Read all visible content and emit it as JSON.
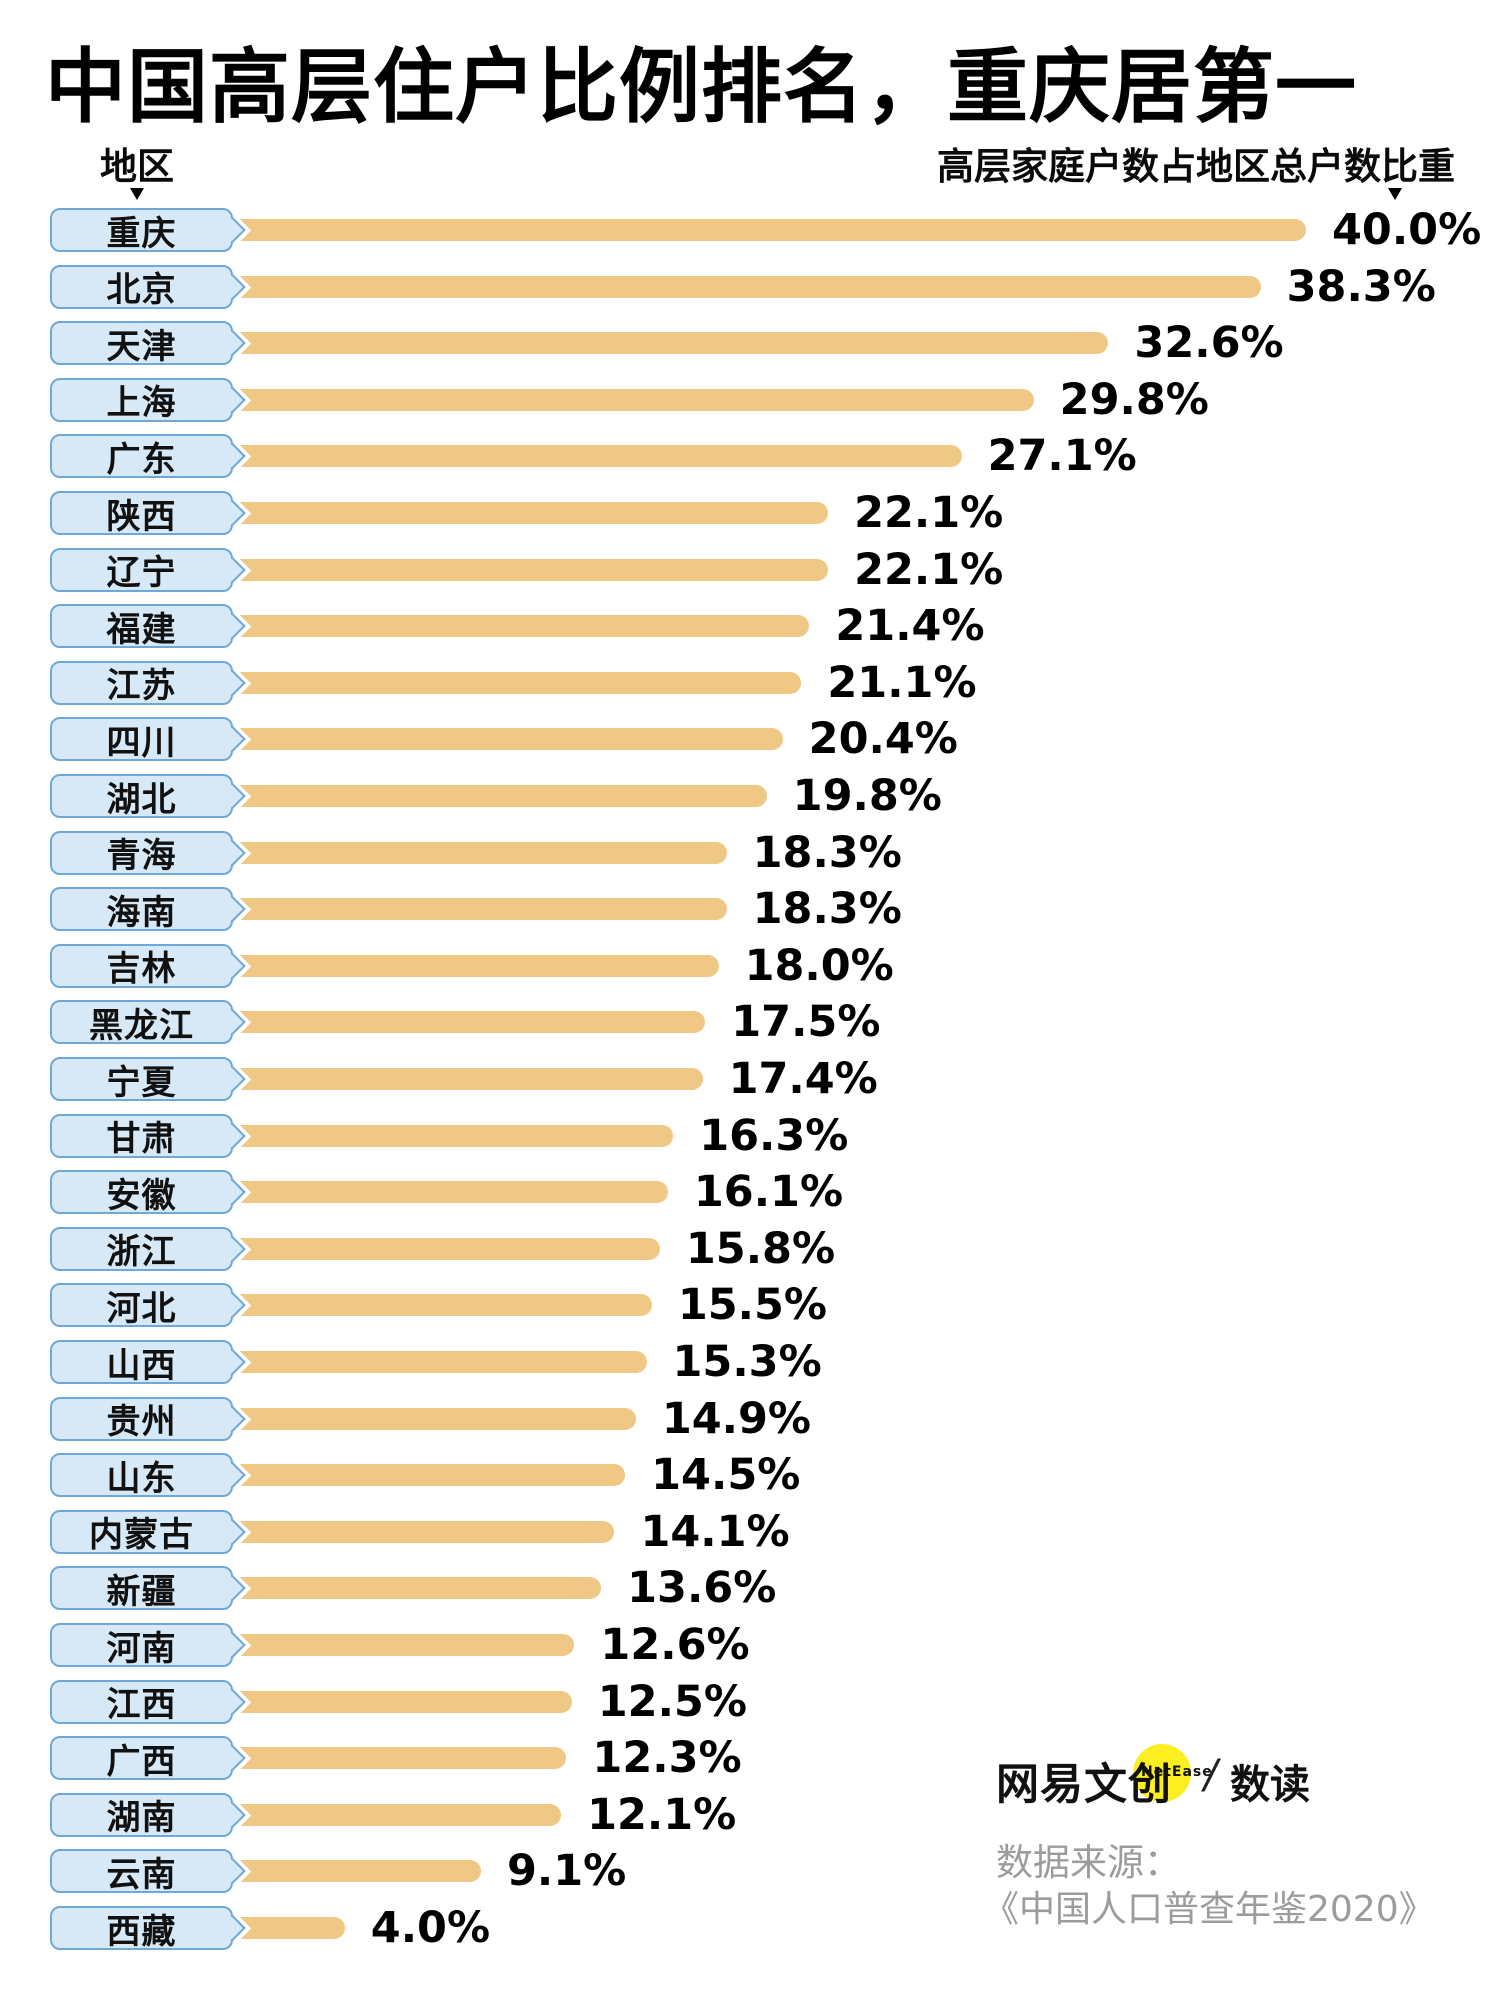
{
  "title": "中国高层住户比例排名，重庆居第一",
  "columns": {
    "left_header": "地区",
    "right_header": "高层家庭户数占地区总户数比重"
  },
  "chart_data": {
    "type": "bar",
    "orientation": "horizontal",
    "title": "中国高层住户比例排名，重庆居第一",
    "xlabel": "高层家庭户数占地区总户数比重",
    "ylabel": "地区",
    "unit": "%",
    "xlim": [
      0,
      40
    ],
    "grid": false,
    "categories": [
      "重庆",
      "北京",
      "天津",
      "上海",
      "广东",
      "陕西",
      "辽宁",
      "福建",
      "江苏",
      "四川",
      "湖北",
      "青海",
      "海南",
      "吉林",
      "黑龙江",
      "宁夏",
      "甘肃",
      "安徽",
      "浙江",
      "河北",
      "山西",
      "贵州",
      "山东",
      "内蒙古",
      "新疆",
      "河南",
      "江西",
      "广西",
      "湖南",
      "云南",
      "西藏"
    ],
    "values": [
      40.0,
      38.3,
      32.6,
      29.8,
      27.1,
      22.1,
      22.1,
      21.4,
      21.1,
      20.4,
      19.8,
      18.3,
      18.3,
      18.0,
      17.5,
      17.4,
      16.3,
      16.1,
      15.8,
      15.5,
      15.3,
      14.9,
      14.5,
      14.1,
      13.6,
      12.6,
      12.5,
      12.3,
      12.1,
      9.1,
      4.0
    ],
    "value_labels": [
      "40.0%",
      "38.3%",
      "32.6%",
      "29.8%",
      "27.1%",
      "22.1%",
      "22.1%",
      "21.4%",
      "21.1%",
      "20.4%",
      "19.8%",
      "18.3%",
      "18.3%",
      "18.0%",
      "17.5%",
      "17.4%",
      "16.3%",
      "16.1%",
      "15.8%",
      "15.5%",
      "15.3%",
      "14.9%",
      "14.5%",
      "14.1%",
      "13.6%",
      "12.6%",
      "12.5%",
      "12.3%",
      "12.1%",
      "9.1%",
      "4.0%"
    ],
    "bar_color": "#F0C885",
    "label_box_fill": "#D7E9F7",
    "label_box_border": "#6FA8D6"
  },
  "footer": {
    "brand_cn": "网易文创",
    "brand_en": "NetEase",
    "divider": "/",
    "sub_brand": "数读",
    "brand_circle_color": "#FBEE21",
    "source_line1": "数据来源：",
    "source_line2": "《中国人口普查年鉴2020》"
  }
}
